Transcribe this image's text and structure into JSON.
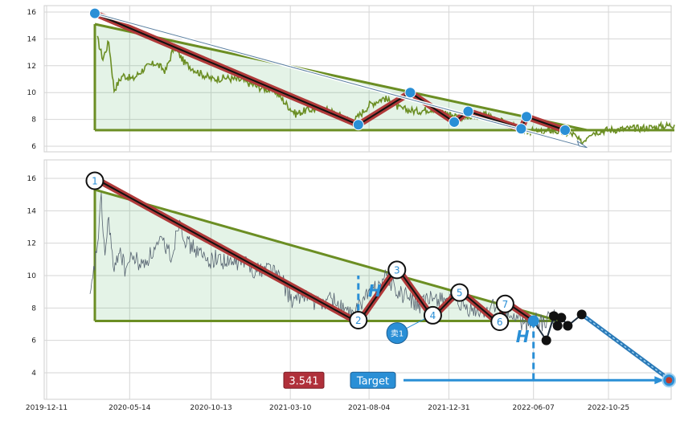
{
  "chart_data": [
    {
      "type": "line",
      "panel": "overview",
      "ylim": [
        5.5,
        16.5
      ],
      "yticks": [
        6,
        8,
        10,
        12,
        14,
        16
      ],
      "grid": true,
      "price_series": {
        "color": "#6b8e23",
        "points": [
          [
            "2020-03-15",
            14.0
          ],
          [
            "2020-03-25",
            12.5
          ],
          [
            "2020-04-05",
            13.8
          ],
          [
            "2020-04-15",
            10.2
          ],
          [
            "2020-05-01",
            11.3
          ],
          [
            "2020-05-20",
            11.0
          ],
          [
            "2020-06-10",
            11.8
          ],
          [
            "2020-07-01",
            12.2
          ],
          [
            "2020-07-20",
            11.6
          ],
          [
            "2020-08-05",
            13.4
          ],
          [
            "2020-08-25",
            12.2
          ],
          [
            "2020-09-20",
            11.5
          ],
          [
            "2020-10-15",
            11.0
          ],
          [
            "2020-11-10",
            11.1
          ],
          [
            "2020-12-10",
            10.9
          ],
          [
            "2021-01-10",
            10.4
          ],
          [
            "2021-02-10",
            10.1
          ],
          [
            "2021-03-01",
            9.2
          ],
          [
            "2021-03-20",
            8.4
          ],
          [
            "2021-04-10",
            8.7
          ],
          [
            "2021-05-10",
            8.8
          ],
          [
            "2021-06-05",
            8.4
          ],
          [
            "2021-06-25",
            8.0
          ],
          [
            "2021-07-05",
            7.8
          ],
          [
            "2021-08-05",
            9.1
          ],
          [
            "2021-09-01",
            9.6
          ],
          [
            "2021-10-01",
            8.8
          ],
          [
            "2021-11-01",
            8.6
          ],
          [
            "2021-12-01",
            8.8
          ],
          [
            "2022-01-10",
            8.3
          ],
          [
            "2022-02-10",
            8.1
          ],
          [
            "2022-03-10",
            8.4
          ],
          [
            "2022-04-10",
            7.8
          ],
          [
            "2022-05-10",
            7.3
          ],
          [
            "2022-06-05",
            7.1
          ],
          [
            "2022-06-25",
            7.0
          ],
          [
            "2022-07-10",
            7.2
          ],
          [
            "2022-08-01",
            7.0
          ],
          [
            "2022-08-20",
            6.9
          ],
          [
            "2022-09-05",
            6.2
          ],
          [
            "2022-09-20",
            7.0
          ],
          [
            "2022-10-20",
            7.2
          ],
          [
            "2022-12-01",
            7.3
          ],
          [
            "2023-01-15",
            7.4
          ],
          [
            "2023-02-25",
            7.6
          ]
        ]
      },
      "wave_points": [
        [
          "2020-03-10",
          15.9
        ],
        [
          "2021-07-15",
          7.6
        ],
        [
          "2021-10-20",
          10.0
        ],
        [
          "2022-01-10",
          7.8
        ],
        [
          "2022-02-05",
          8.6
        ],
        [
          "2022-05-15",
          7.3
        ],
        [
          "2022-05-25",
          8.2
        ],
        [
          "2022-08-05",
          7.2
        ]
      ],
      "triangle": {
        "apex": [
          "2020-03-10",
          15.1
        ],
        "upper_end": [
          "2022-09-15",
          7.2
        ],
        "base_start": [
          "2020-03-10",
          7.2
        ],
        "base_end": [
          "2023-02-25",
          7.2
        ]
      },
      "arrow": {
        "from": [
          "2020-03-10",
          15.9
        ],
        "to": [
          "2022-09-15",
          5.9
        ]
      }
    },
    {
      "type": "line",
      "panel": "main",
      "ylim": [
        2.4,
        17.0
      ],
      "yticks": [
        4,
        6,
        8,
        10,
        12,
        14,
        16
      ],
      "xticks": [
        "2019-12-11",
        "2020-05-14",
        "2020-10-13",
        "2021-03-10",
        "2021-08-04",
        "2021-12-31",
        "2022-06-07",
        "2022-10-25"
      ],
      "grid": true,
      "price_series": {
        "color": "#556270",
        "points": [
          [
            "2020-03-01",
            8.4
          ],
          [
            "2020-03-08",
            10.2
          ],
          [
            "2020-03-15",
            12.0
          ],
          [
            "2020-03-22",
            14.6
          ],
          [
            "2020-03-29",
            11.2
          ],
          [
            "2020-04-05",
            13.6
          ],
          [
            "2020-04-15",
            10.0
          ],
          [
            "2020-04-25",
            11.8
          ],
          [
            "2020-05-05",
            10.4
          ],
          [
            "2020-05-20",
            11.2
          ],
          [
            "2020-06-05",
            10.6
          ],
          [
            "2020-06-25",
            11.4
          ],
          [
            "2020-07-15",
            12.1
          ],
          [
            "2020-08-01",
            11.2
          ],
          [
            "2020-08-15",
            13.6
          ],
          [
            "2020-08-28",
            12.0
          ],
          [
            "2020-09-15",
            11.6
          ],
          [
            "2020-10-05",
            10.9
          ],
          [
            "2020-10-25",
            11.1
          ],
          [
            "2020-11-15",
            10.7
          ],
          [
            "2020-12-10",
            10.9
          ],
          [
            "2021-01-05",
            10.3
          ],
          [
            "2021-02-01",
            10.6
          ],
          [
            "2021-02-25",
            9.5
          ],
          [
            "2021-03-15",
            8.3
          ],
          [
            "2021-04-05",
            8.9
          ],
          [
            "2021-05-01",
            8.2
          ],
          [
            "2021-05-25",
            8.6
          ],
          [
            "2021-06-20",
            7.9
          ],
          [
            "2021-07-05",
            7.4
          ],
          [
            "2021-07-25",
            8.6
          ],
          [
            "2021-08-15",
            9.2
          ],
          [
            "2021-09-05",
            10.0
          ],
          [
            "2021-09-25",
            9.0
          ],
          [
            "2021-10-15",
            8.7
          ],
          [
            "2021-11-05",
            8.1
          ],
          [
            "2021-11-25",
            8.5
          ],
          [
            "2021-12-20",
            8.7
          ],
          [
            "2022-01-15",
            8.2
          ],
          [
            "2022-02-10",
            7.8
          ],
          [
            "2022-03-05",
            7.7
          ],
          [
            "2022-03-25",
            8.2
          ],
          [
            "2022-04-15",
            7.6
          ],
          [
            "2022-05-05",
            7.4
          ],
          [
            "2022-05-25",
            6.9
          ],
          [
            "2022-06-10",
            7.3
          ],
          [
            "2022-06-25",
            7.0
          ],
          [
            "2022-07-10",
            7.4
          ],
          [
            "2022-07-25",
            7.3
          ]
        ]
      },
      "wave_points": [
        {
          "label": "1",
          "date": "2020-03-10",
          "value": 16.0
        },
        {
          "label": "2",
          "date": "2021-07-15",
          "value": 7.1
        },
        {
          "label": "3",
          "date": "2021-09-25",
          "value": 10.5
        },
        {
          "label": "4",
          "date": "2021-12-01",
          "value": 7.4
        },
        {
          "label": "5",
          "date": "2022-01-20",
          "value": 9.1
        },
        {
          "label": "6",
          "date": "2022-04-05",
          "value": 7.0
        },
        {
          "label": "7",
          "date": "2022-04-15",
          "value": 8.4
        },
        {
          "label": "",
          "date": "2022-06-07",
          "value": 7.2
        }
      ],
      "triangle": {
        "apex": [
          "2020-03-10",
          15.3
        ],
        "upper_end": [
          "2022-07-25",
          7.2
        ],
        "base_start": [
          "2020-03-10",
          7.2
        ],
        "base_end": [
          "2022-07-25",
          7.2
        ]
      },
      "projection_points": [
        [
          "2022-06-07",
          7.2
        ],
        [
          "2022-07-01",
          6.0
        ],
        [
          "2022-07-15",
          7.5
        ],
        [
          "2022-07-22",
          6.9
        ],
        [
          "2022-07-29",
          7.4
        ],
        [
          "2022-08-10",
          6.9
        ],
        [
          "2022-09-05",
          7.6
        ],
        [
          "2023-02-15",
          3.6
        ]
      ],
      "target_point": [
        "2023-02-15",
        3.541
      ],
      "height_markers": [
        {
          "label": "H",
          "date": "2021-07-15",
          "from": 7.2,
          "to": 10.0
        },
        {
          "label": "H",
          "date": "2022-06-07",
          "from": 7.2,
          "to": 3.6
        }
      ],
      "annotations": {
        "target_value": "3.541",
        "target_label": "Target",
        "sell_label": "卖1",
        "sell_point": [
          "2021-11-05",
          6.5
        ],
        "height_symbol": "H"
      }
    }
  ]
}
